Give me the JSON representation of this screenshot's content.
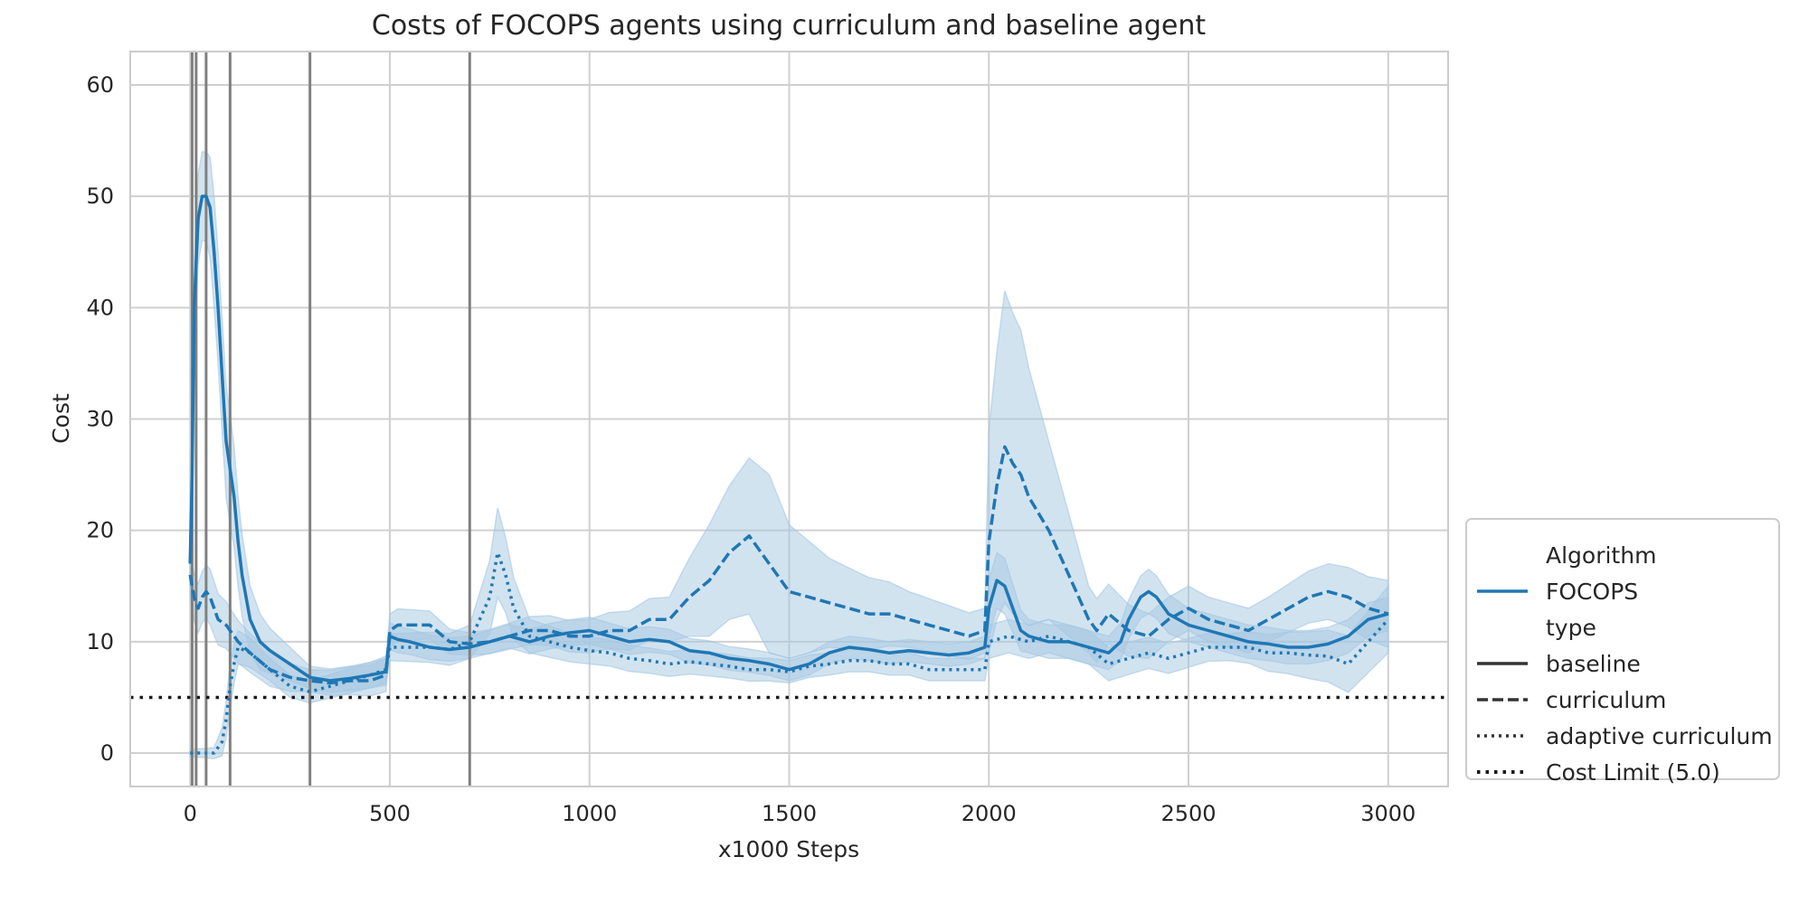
{
  "chart_data": {
    "type": "line",
    "title": "Costs of FOCOPS agents using curriculum and baseline agent",
    "xlabel": "x1000 Steps",
    "ylabel": "Cost",
    "xlim": [
      -150,
      3150
    ],
    "ylim": [
      -3,
      63
    ],
    "xticks": [
      0,
      500,
      1000,
      1500,
      2000,
      2500,
      3000
    ],
    "yticks": [
      0,
      10,
      20,
      30,
      40,
      50,
      60
    ],
    "grid": true,
    "color": "#1f77b4",
    "band_color": "#a6c8e2",
    "vlines": [
      5,
      15,
      40,
      100,
      300,
      700
    ],
    "vline_color": "#808080",
    "hline": {
      "y": 5.0,
      "label": "Cost Limit (5.0)",
      "color": "#1a1a1a"
    },
    "legend": {
      "placement": "lower right, outside plot",
      "entries": [
        {
          "kind": "header",
          "label": "Algorithm"
        },
        {
          "kind": "line",
          "style": "solid",
          "color": "#1f77b4",
          "label": "FOCOPS"
        },
        {
          "kind": "header",
          "label": "type"
        },
        {
          "kind": "line",
          "style": "solid",
          "color": "#333333",
          "label": "baseline"
        },
        {
          "kind": "line",
          "style": "dashed",
          "color": "#333333",
          "label": "curriculum"
        },
        {
          "kind": "line",
          "style": "dotted",
          "color": "#333333",
          "label": "adaptive curriculum"
        },
        {
          "kind": "line",
          "style": "dotted-bold",
          "color": "#1a1a1a",
          "label": "Cost Limit (5.0)"
        }
      ]
    },
    "series": [
      {
        "name": "baseline",
        "style": "solid",
        "points": [
          [
            0,
            17
          ],
          [
            5,
            25
          ],
          [
            10,
            40
          ],
          [
            20,
            48
          ],
          [
            30,
            50
          ],
          [
            40,
            50
          ],
          [
            50,
            49
          ],
          [
            60,
            45
          ],
          [
            70,
            40
          ],
          [
            80,
            34
          ],
          [
            90,
            28
          ],
          [
            100,
            25.5
          ],
          [
            110,
            23
          ],
          [
            120,
            19
          ],
          [
            130,
            16
          ],
          [
            150,
            12
          ],
          [
            175,
            10
          ],
          [
            200,
            9.2
          ],
          [
            250,
            8
          ],
          [
            300,
            6.8
          ],
          [
            350,
            6.5
          ],
          [
            400,
            6.7
          ],
          [
            450,
            7
          ],
          [
            490,
            7.3
          ],
          [
            500,
            10.5
          ],
          [
            520,
            10.2
          ],
          [
            550,
            10
          ],
          [
            600,
            9.5
          ],
          [
            650,
            9.3
          ],
          [
            700,
            9.5
          ],
          [
            750,
            10
          ],
          [
            800,
            10.5
          ],
          [
            850,
            10
          ],
          [
            900,
            10.5
          ],
          [
            950,
            10.8
          ],
          [
            1000,
            11
          ],
          [
            1050,
            10.5
          ],
          [
            1100,
            10
          ],
          [
            1150,
            10.2
          ],
          [
            1200,
            10
          ],
          [
            1250,
            9.2
          ],
          [
            1300,
            9
          ],
          [
            1350,
            8.5
          ],
          [
            1400,
            8.3
          ],
          [
            1450,
            8
          ],
          [
            1500,
            7.5
          ],
          [
            1550,
            8
          ],
          [
            1600,
            9
          ],
          [
            1650,
            9.5
          ],
          [
            1700,
            9.3
          ],
          [
            1750,
            9
          ],
          [
            1800,
            9.2
          ],
          [
            1850,
            9
          ],
          [
            1900,
            8.8
          ],
          [
            1950,
            9
          ],
          [
            1990,
            9.5
          ],
          [
            2000,
            13
          ],
          [
            2020,
            15.5
          ],
          [
            2040,
            15
          ],
          [
            2060,
            13
          ],
          [
            2080,
            11
          ],
          [
            2100,
            10.5
          ],
          [
            2150,
            10
          ],
          [
            2200,
            10
          ],
          [
            2250,
            9.5
          ],
          [
            2300,
            9
          ],
          [
            2330,
            10
          ],
          [
            2350,
            12
          ],
          [
            2380,
            14
          ],
          [
            2400,
            14.5
          ],
          [
            2420,
            14
          ],
          [
            2450,
            12.5
          ],
          [
            2500,
            11.5
          ],
          [
            2550,
            11
          ],
          [
            2600,
            10.5
          ],
          [
            2650,
            10
          ],
          [
            2700,
            9.8
          ],
          [
            2750,
            9.5
          ],
          [
            2800,
            9.5
          ],
          [
            2850,
            9.8
          ],
          [
            2900,
            10.5
          ],
          [
            2950,
            12
          ],
          [
            3000,
            12.5
          ]
        ],
        "band": [
          [
            0,
            2
          ],
          [
            10,
            4
          ],
          [
            20,
            4
          ],
          [
            30,
            4
          ],
          [
            40,
            4
          ],
          [
            60,
            5
          ],
          [
            80,
            5
          ],
          [
            100,
            5
          ],
          [
            120,
            4
          ],
          [
            150,
            3
          ],
          [
            200,
            2
          ],
          [
            300,
            1
          ],
          [
            500,
            1.2
          ],
          [
            700,
            1
          ],
          [
            1000,
            1.2
          ],
          [
            1500,
            1
          ],
          [
            1990,
            1
          ],
          [
            2000,
            2.5
          ],
          [
            2040,
            2.5
          ],
          [
            2100,
            1.5
          ],
          [
            2300,
            1.5
          ],
          [
            2400,
            2
          ],
          [
            2500,
            1.5
          ],
          [
            3000,
            1.5
          ]
        ]
      },
      {
        "name": "curriculum",
        "style": "dashed",
        "points": [
          [
            0,
            16
          ],
          [
            10,
            14
          ],
          [
            20,
            13
          ],
          [
            30,
            14
          ],
          [
            40,
            14.5
          ],
          [
            50,
            14
          ],
          [
            60,
            13
          ],
          [
            70,
            12
          ],
          [
            90,
            11.5
          ],
          [
            100,
            11
          ],
          [
            120,
            10
          ],
          [
            150,
            9
          ],
          [
            200,
            7.5
          ],
          [
            250,
            6.8
          ],
          [
            300,
            6.5
          ],
          [
            350,
            6.3
          ],
          [
            400,
            6.5
          ],
          [
            450,
            6.5
          ],
          [
            490,
            7
          ],
          [
            500,
            11
          ],
          [
            520,
            11.5
          ],
          [
            550,
            11.5
          ],
          [
            600,
            11.5
          ],
          [
            650,
            10
          ],
          [
            700,
            9.8
          ],
          [
            750,
            10
          ],
          [
            800,
            10.5
          ],
          [
            850,
            11
          ],
          [
            900,
            11
          ],
          [
            950,
            10.5
          ],
          [
            1000,
            10.5
          ],
          [
            1050,
            11
          ],
          [
            1100,
            11
          ],
          [
            1150,
            12
          ],
          [
            1200,
            12
          ],
          [
            1250,
            14
          ],
          [
            1300,
            15.5
          ],
          [
            1350,
            18
          ],
          [
            1400,
            19.5
          ],
          [
            1450,
            17
          ],
          [
            1500,
            14.5
          ],
          [
            1550,
            14
          ],
          [
            1600,
            13.5
          ],
          [
            1650,
            13
          ],
          [
            1700,
            12.5
          ],
          [
            1750,
            12.5
          ],
          [
            1800,
            12
          ],
          [
            1850,
            11.5
          ],
          [
            1900,
            11
          ],
          [
            1950,
            10.5
          ],
          [
            1990,
            11
          ],
          [
            2000,
            19
          ],
          [
            2020,
            24
          ],
          [
            2040,
            27.5
          ],
          [
            2060,
            26
          ],
          [
            2080,
            25
          ],
          [
            2100,
            23
          ],
          [
            2150,
            20
          ],
          [
            2200,
            16
          ],
          [
            2250,
            12
          ],
          [
            2270,
            11
          ],
          [
            2300,
            12.5
          ],
          [
            2350,
            11
          ],
          [
            2400,
            10.5
          ],
          [
            2450,
            12
          ],
          [
            2500,
            13
          ],
          [
            2550,
            12
          ],
          [
            2600,
            11.5
          ],
          [
            2650,
            11
          ],
          [
            2700,
            12
          ],
          [
            2750,
            13
          ],
          [
            2800,
            14
          ],
          [
            2850,
            14.5
          ],
          [
            2900,
            14
          ],
          [
            2950,
            13
          ],
          [
            3000,
            12.5
          ]
        ],
        "band": [
          [
            0,
            2
          ],
          [
            50,
            2.5
          ],
          [
            100,
            2
          ],
          [
            200,
            1.5
          ],
          [
            300,
            1
          ],
          [
            500,
            1.5
          ],
          [
            700,
            1
          ],
          [
            1000,
            1.5
          ],
          [
            1200,
            2
          ],
          [
            1300,
            5
          ],
          [
            1400,
            7
          ],
          [
            1450,
            8
          ],
          [
            1500,
            6
          ],
          [
            1600,
            4
          ],
          [
            1800,
            2.5
          ],
          [
            1990,
            2
          ],
          [
            2000,
            10
          ],
          [
            2040,
            14
          ],
          [
            2080,
            13
          ],
          [
            2150,
            8
          ],
          [
            2250,
            3
          ],
          [
            2400,
            2
          ],
          [
            2700,
            2
          ],
          [
            2850,
            2.5
          ],
          [
            3000,
            3
          ]
        ]
      },
      {
        "name": "adaptive curriculum",
        "style": "dotted",
        "points": [
          [
            0,
            0
          ],
          [
            20,
            0
          ],
          [
            40,
            0
          ],
          [
            60,
            0
          ],
          [
            80,
            1
          ],
          [
            90,
            3
          ],
          [
            100,
            6
          ],
          [
            110,
            8
          ],
          [
            120,
            9.5
          ],
          [
            150,
            9
          ],
          [
            200,
            7.5
          ],
          [
            250,
            6
          ],
          [
            300,
            5.5
          ],
          [
            350,
            6
          ],
          [
            400,
            6.5
          ],
          [
            450,
            7
          ],
          [
            490,
            7.5
          ],
          [
            500,
            9.5
          ],
          [
            550,
            9.5
          ],
          [
            600,
            9.5
          ],
          [
            650,
            9.3
          ],
          [
            700,
            10
          ],
          [
            750,
            14
          ],
          [
            770,
            18
          ],
          [
            790,
            16
          ],
          [
            810,
            13
          ],
          [
            850,
            10.5
          ],
          [
            900,
            10
          ],
          [
            950,
            9.5
          ],
          [
            1000,
            9.2
          ],
          [
            1050,
            9
          ],
          [
            1100,
            8.5
          ],
          [
            1150,
            8.3
          ],
          [
            1200,
            8
          ],
          [
            1250,
            8.2
          ],
          [
            1300,
            8
          ],
          [
            1350,
            7.8
          ],
          [
            1400,
            7.5
          ],
          [
            1450,
            7.5
          ],
          [
            1500,
            7.3
          ],
          [
            1550,
            7.8
          ],
          [
            1600,
            8
          ],
          [
            1650,
            8.3
          ],
          [
            1700,
            8.3
          ],
          [
            1750,
            8
          ],
          [
            1800,
            8
          ],
          [
            1850,
            7.5
          ],
          [
            1900,
            7.5
          ],
          [
            1950,
            7.5
          ],
          [
            1990,
            7.5
          ],
          [
            2000,
            10
          ],
          [
            2050,
            10.5
          ],
          [
            2100,
            10
          ],
          [
            2150,
            10.5
          ],
          [
            2200,
            10
          ],
          [
            2250,
            9.5
          ],
          [
            2300,
            8
          ],
          [
            2350,
            8.5
          ],
          [
            2400,
            9
          ],
          [
            2450,
            8.5
          ],
          [
            2500,
            9
          ],
          [
            2550,
            9.5
          ],
          [
            2600,
            9.5
          ],
          [
            2650,
            9.5
          ],
          [
            2700,
            9
          ],
          [
            2750,
            9
          ],
          [
            2800,
            8.8
          ],
          [
            2850,
            8.7
          ],
          [
            2900,
            8
          ],
          [
            2950,
            10
          ],
          [
            3000,
            12
          ]
        ],
        "band": [
          [
            0,
            0.3
          ],
          [
            60,
            0.5
          ],
          [
            100,
            2
          ],
          [
            120,
            1.5
          ],
          [
            200,
            1
          ],
          [
            300,
            1
          ],
          [
            500,
            1.2
          ],
          [
            700,
            1.5
          ],
          [
            770,
            4
          ],
          [
            850,
            1.5
          ],
          [
            1000,
            1.2
          ],
          [
            1500,
            1
          ],
          [
            1990,
            1
          ],
          [
            2000,
            1.5
          ],
          [
            2300,
            1.5
          ],
          [
            2600,
            1.2
          ],
          [
            3000,
            3
          ]
        ]
      }
    ]
  }
}
